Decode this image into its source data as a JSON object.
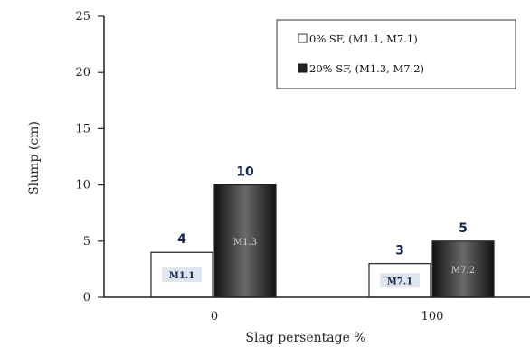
{
  "chart_data": {
    "type": "bar",
    "categories": [
      "0",
      "100"
    ],
    "series": [
      {
        "name": "0% SF, (M1.1, M7.1)",
        "values": [
          4,
          3
        ],
        "bar_labels": [
          "M1.1",
          "M7.1"
        ],
        "fill": "#ffffff"
      },
      {
        "name": "20% SF, (M1.3, M7.2)",
        "values": [
          10,
          5
        ],
        "bar_labels": [
          "M1.3",
          "M7.2"
        ],
        "fill": "#2a2a2a"
      }
    ],
    "ylim": [
      0,
      25
    ],
    "yticks": [
      0,
      5,
      10,
      15,
      20,
      25
    ],
    "xlabel": "Slag persentage %",
    "ylabel": "Slump (cm)",
    "legend_position": "top-right",
    "grid": false
  }
}
